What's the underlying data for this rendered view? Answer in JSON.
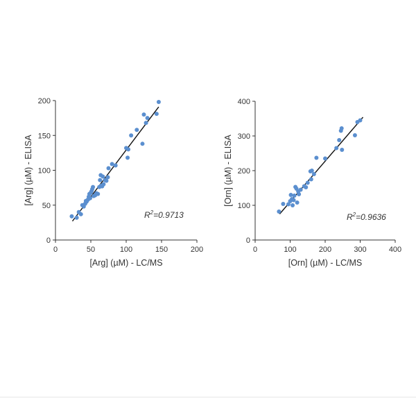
{
  "colors": {
    "point": "#5b8fcf",
    "fit_line": "#111111",
    "axis": "#333333",
    "text": "#333333"
  },
  "chart_data": [
    {
      "type": "scatter",
      "xlabel": "[Arg] (µM) - LC/MS",
      "ylabel": "[Arg] (µM) - ELISA",
      "annotation": {
        "base": "R",
        "sup": "2",
        "value": "=0.9713"
      },
      "xlim": [
        0,
        200
      ],
      "ylim": [
        0,
        200
      ],
      "xticks": [
        0,
        50,
        100,
        150,
        200
      ],
      "yticks": [
        0,
        50,
        100,
        150,
        200
      ],
      "grid": false,
      "fit_line": {
        "x": [
          24,
          146
        ],
        "y": [
          27,
          191
        ]
      },
      "points": [
        [
          23,
          34
        ],
        [
          30,
          32
        ],
        [
          33,
          40
        ],
        [
          36,
          37
        ],
        [
          38,
          50
        ],
        [
          40,
          48
        ],
        [
          42,
          52
        ],
        [
          43,
          56
        ],
        [
          44,
          55
        ],
        [
          45,
          57
        ],
        [
          46,
          58
        ],
        [
          47,
          62
        ],
        [
          48,
          66
        ],
        [
          49,
          60
        ],
        [
          50,
          68
        ],
        [
          51,
          70
        ],
        [
          52,
          73
        ],
        [
          53,
          76
        ],
        [
          54,
          63
        ],
        [
          56,
          64
        ],
        [
          58,
          67
        ],
        [
          60,
          66
        ],
        [
          62,
          76
        ],
        [
          63,
          86
        ],
        [
          64,
          93
        ],
        [
          65,
          78
        ],
        [
          66,
          77
        ],
        [
          67,
          91
        ],
        [
          68,
          80
        ],
        [
          70,
          86
        ],
        [
          72,
          85
        ],
        [
          74,
          90
        ],
        [
          75,
          103
        ],
        [
          80,
          109
        ],
        [
          85,
          107
        ],
        [
          100,
          132
        ],
        [
          102,
          118
        ],
        [
          103,
          130
        ],
        [
          107,
          150
        ],
        [
          115,
          158
        ],
        [
          123,
          138
        ],
        [
          125,
          180
        ],
        [
          128,
          168
        ],
        [
          130,
          175
        ],
        [
          143,
          181
        ],
        [
          146,
          198
        ]
      ]
    },
    {
      "type": "scatter",
      "xlabel": "[Orn] (µM) - LC/MS",
      "ylabel": "[Orn] (µM) - ELISA",
      "annotation": {
        "base": "R",
        "sup": "2",
        "value": "=0.9636"
      },
      "xlim": [
        0,
        400
      ],
      "ylim": [
        0,
        400
      ],
      "xticks": [
        0,
        100,
        200,
        300,
        400
      ],
      "yticks": [
        0,
        100,
        200,
        300,
        400
      ],
      "grid": false,
      "fit_line": {
        "x": [
          70,
          308
        ],
        "y": [
          75,
          354
        ]
      },
      "points": [
        [
          68,
          82
        ],
        [
          80,
          104
        ],
        [
          95,
          103
        ],
        [
          100,
          112
        ],
        [
          102,
          130
        ],
        [
          105,
          118
        ],
        [
          107,
          100
        ],
        [
          110,
          115
        ],
        [
          112,
          128
        ],
        [
          115,
          153
        ],
        [
          118,
          148
        ],
        [
          120,
          108
        ],
        [
          123,
          140
        ],
        [
          125,
          132
        ],
        [
          130,
          145
        ],
        [
          140,
          155
        ],
        [
          145,
          152
        ],
        [
          150,
          165
        ],
        [
          158,
          198
        ],
        [
          160,
          175
        ],
        [
          162,
          200
        ],
        [
          168,
          190
        ],
        [
          175,
          237
        ],
        [
          200,
          235
        ],
        [
          232,
          265
        ],
        [
          240,
          288
        ],
        [
          245,
          315
        ],
        [
          247,
          322
        ],
        [
          248,
          260
        ],
        [
          285,
          302
        ],
        [
          292,
          340
        ],
        [
          300,
          345
        ]
      ]
    }
  ]
}
